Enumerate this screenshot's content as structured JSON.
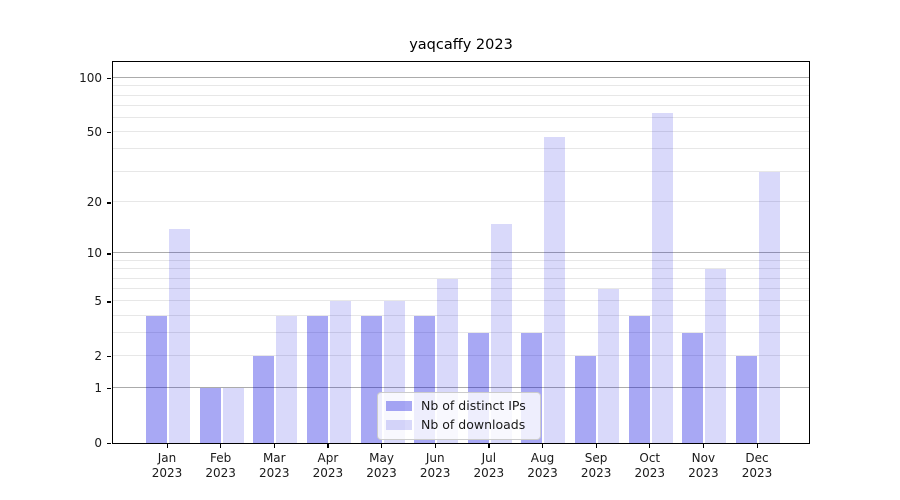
{
  "title": "yaqcaffy 2023",
  "chart_data": {
    "type": "bar",
    "title": "yaqcaffy 2023",
    "categories": [
      "Jan 2023",
      "Feb 2023",
      "Mar 2023",
      "Apr 2023",
      "May 2023",
      "Jun 2023",
      "Jul 2023",
      "Aug 2023",
      "Sep 2023",
      "Oct 2023",
      "Nov 2023",
      "Dec 2023"
    ],
    "series": [
      {
        "name": "Nb of distinct IPs",
        "values": [
          4,
          1,
          2,
          4,
          4,
          4,
          3,
          3,
          2,
          4,
          3,
          2
        ],
        "color": "rgba(0,0,222,0.34)"
      },
      {
        "name": "Nb of downloads",
        "values": [
          14,
          1,
          4,
          5,
          5,
          7,
          15,
          47,
          6,
          64,
          8,
          30
        ],
        "color": "rgba(0,0,222,0.15)"
      }
    ],
    "xlabel": "",
    "ylabel": "",
    "yscale": "log1p",
    "ylim": [
      0,
      125
    ],
    "yticks": [
      0,
      1,
      2,
      5,
      10,
      20,
      50,
      100
    ],
    "grid": true,
    "legend_position": "lower center"
  },
  "colors": {
    "bar_distinct_ips": "rgba(0,0,222,0.34)",
    "bar_downloads": "rgba(0,0,222,0.15)",
    "grid_major": "#ababab",
    "grid_minor": "#e7e7e7",
    "spine": "#000000",
    "text": "#1a1a1a",
    "legend_bg": "rgba(255,255,255,0.8)",
    "legend_border": "#cccccc"
  }
}
